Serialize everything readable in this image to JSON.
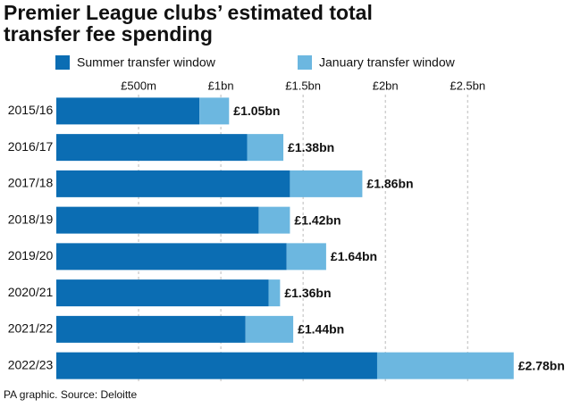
{
  "chart_data": {
    "type": "stacked-bar-horizontal",
    "title": [
      "Premier League clubs’ estimated total",
      "transfer fee spending"
    ],
    "source": "PA graphic. Source: Deloitte",
    "categories": [
      "2015/16",
      "2016/17",
      "2017/18",
      "2018/19",
      "2019/20",
      "2020/21",
      "2021/22",
      "2022/23"
    ],
    "series": [
      {
        "name": "Summer transfer window",
        "color": "#0b6db3",
        "values": [
          870,
          1160,
          1420,
          1230,
          1400,
          1290,
          1150,
          1950
        ]
      },
      {
        "name": "January transfer window",
        "color": "#6cb7e0",
        "values": [
          180,
          220,
          440,
          190,
          240,
          70,
          290,
          830
        ]
      }
    ],
    "totals": {
      "values": [
        1050,
        1380,
        1860,
        1420,
        1640,
        1360,
        1440,
        2780
      ],
      "value_labels": [
        "£1.05bn",
        "£1.38bn",
        "£1.86bn",
        "£1.42bn",
        "£1.64bn",
        "£1.36bn",
        "£1.44bn",
        "£2.78bn"
      ]
    },
    "xlim": [
      0,
      3080
    ],
    "xticks": [
      {
        "value": 500,
        "label": "£500m"
      },
      {
        "value": 1000,
        "label": "£1bn"
      },
      {
        "value": 1500,
        "label": "£1.5bn"
      },
      {
        "value": 2000,
        "label": "£2bn"
      },
      {
        "value": 2500,
        "label": "£2.5bn"
      }
    ],
    "grid": true
  }
}
